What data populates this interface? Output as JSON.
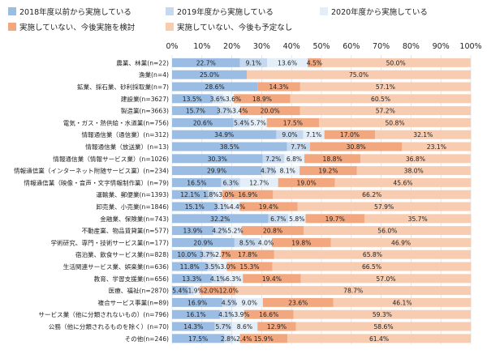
{
  "chart_data": {
    "type": "bar",
    "orientation": "horizontal",
    "stacked": true,
    "xlim": [
      0,
      100
    ],
    "x_ticks": [
      "0%",
      "10%",
      "20%",
      "30%",
      "40%",
      "50%",
      "60%",
      "70%",
      "80%",
      "90%",
      "100%"
    ],
    "grid": true,
    "legend_position": "top",
    "categories": [
      "農業、林業(n=22)",
      "漁業(n=4)",
      "鉱業、採石業、砂利採取業(n=7)",
      "建設業(n=3627)",
      "製造業(n=3663)",
      "電気・ガス・熱供給・水道業(n=756)",
      "情報通信業（通信業）(n=312)",
      "情報通信業（放送業）(n=13)",
      "情報通信業（情報サービス業）(n=1026)",
      "情報通信業（インターネット附随サービス業）(n=234)",
      "情報通信業（映像・音声・文字情報制作業）(n=79)",
      "運輸業、郵便業(n=1393)",
      "卸売業、小売業(n=1846)",
      "金融業、保険業(n=743)",
      "不動産業、物品賃貸業(n=577)",
      "学術研究、専門・技術サービス業(n=177)",
      "宿泊業、飲食サービス業(n=828)",
      "生活関連サービス業、娯楽業(n=636)",
      "教育、学習支援業(n=656)",
      "医療、福祉(n=2870)",
      "複合サービス事業(n=89)",
      "サービス業（他に分類されないもの）(n=796)",
      "公務（他に分類されるものを除く）(n=70)",
      "その他(n=246)"
    ],
    "series": [
      {
        "name": "2018年度以前から実施している",
        "color": "#9bbde3",
        "values": [
          22.7,
          25.0,
          28.6,
          13.5,
          15.7,
          20.6,
          34.9,
          38.5,
          30.3,
          29.9,
          16.5,
          12.1,
          15.1,
          32.2,
          13.9,
          20.9,
          10.0,
          11.8,
          13.3,
          5.4,
          16.9,
          16.1,
          14.3,
          17.5
        ]
      },
      {
        "name": "2019年度から実施している",
        "color": "#c5d8ee",
        "values": [
          9.1,
          0,
          0,
          3.6,
          3.7,
          5.4,
          9.0,
          7.7,
          7.2,
          4.7,
          6.3,
          1.8,
          3.1,
          6.7,
          4.2,
          8.5,
          3.7,
          3.5,
          4.1,
          1.9,
          4.5,
          4.1,
          5.7,
          2.8
        ]
      },
      {
        "name": "2020年度から実施している",
        "color": "#e4eef8",
        "values": [
          13.6,
          0,
          0,
          3.6,
          3.4,
          5.7,
          7.1,
          0,
          6.8,
          8.1,
          12.7,
          3.0,
          4.4,
          5.8,
          5.2,
          4.0,
          2.7,
          3.0,
          6.3,
          2.0,
          9.0,
          3.9,
          8.6,
          2.4
        ]
      },
      {
        "name": "実施していない、今後実施を検討",
        "color": "#f2a77e",
        "values": [
          4.5,
          0,
          14.3,
          18.9,
          20.0,
          17.5,
          17.0,
          30.8,
          18.8,
          19.2,
          19.0,
          16.9,
          19.4,
          19.7,
          20.8,
          19.8,
          17.8,
          15.3,
          19.4,
          12.0,
          23.6,
          16.6,
          12.9,
          15.9
        ]
      },
      {
        "name": "実施していない、今後も予定なし",
        "color": "#f8ccb1",
        "values": [
          50.0,
          75.0,
          57.1,
          60.5,
          57.2,
          50.8,
          32.1,
          23.1,
          36.8,
          38.0,
          45.6,
          66.2,
          57.9,
          35.7,
          56.0,
          46.9,
          65.8,
          66.5,
          57.0,
          78.7,
          46.1,
          59.3,
          58.6,
          61.4
        ]
      }
    ]
  }
}
